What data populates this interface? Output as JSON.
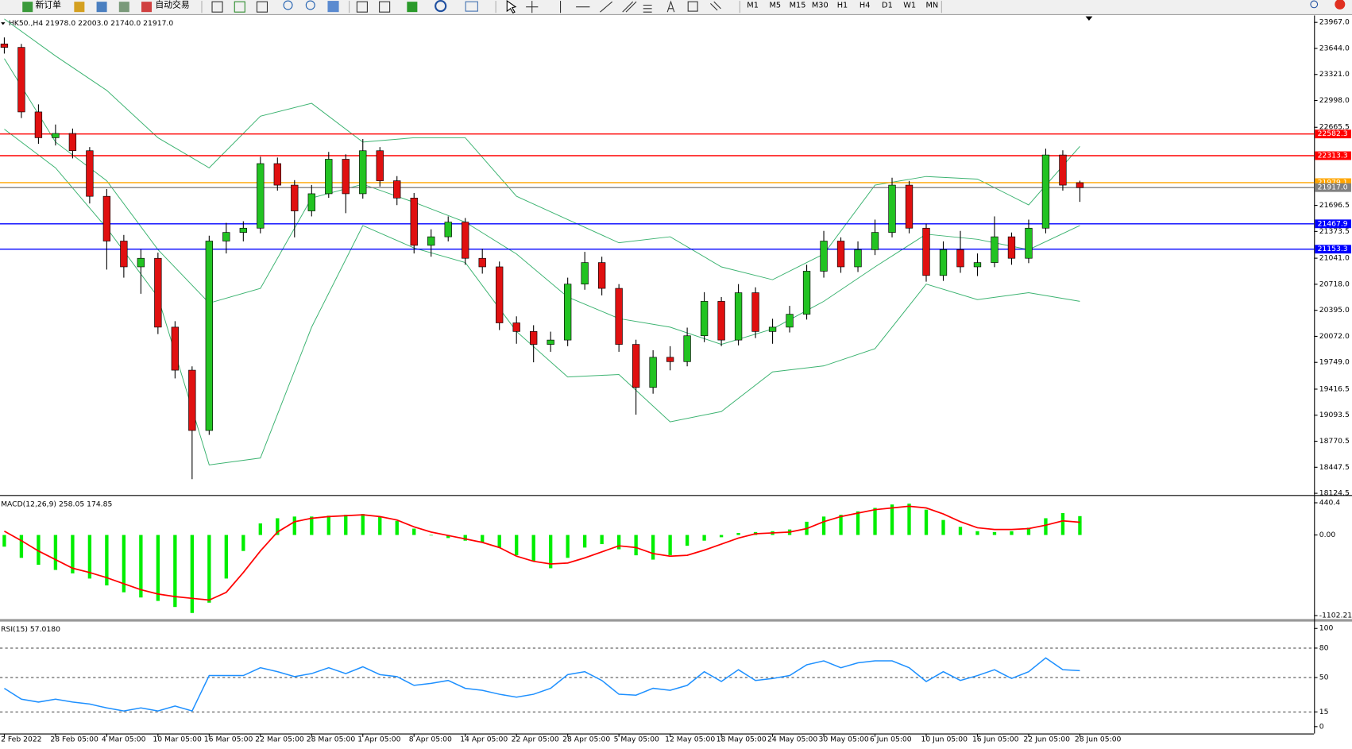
{
  "toolbar": {
    "new_order": "新订单",
    "auto_trading": "自动交易",
    "timeframes": [
      "M1",
      "M5",
      "M15",
      "M30",
      "H1",
      "H4",
      "D1",
      "W1",
      "MN"
    ]
  },
  "chart_data": [
    {
      "type": "candlestick",
      "title": "HK50.,H4  21978.0 22003.0 21740.0 21917.0",
      "bull_color": "#22c322",
      "bear_color": "#e01010",
      "categories": [
        "2 Feb 2022",
        null,
        null,
        "28 Feb 05:00",
        null,
        null,
        "4 Mar 05:00",
        null,
        null,
        "10 Mar 05:00",
        null,
        null,
        "16 Mar 05:00",
        null,
        null,
        "22 Mar 05:00",
        null,
        null,
        "28 Mar 05:00",
        null,
        null,
        "1 Apr 05:00",
        null,
        null,
        "8 Apr 05:00",
        null,
        null,
        "14 Apr 05:00",
        null,
        null,
        "22 Apr 05:00",
        null,
        null,
        "28 Apr 05:00",
        null,
        null,
        "5 May 05:00",
        null,
        null,
        "12 May 05:00",
        null,
        null,
        "18 May 05:00",
        null,
        null,
        "24 May 05:00",
        null,
        null,
        "30 May 05:00",
        null,
        null,
        "6 Jun 05:00",
        null,
        null,
        "10 Jun 05:00",
        null,
        null,
        "16 Jun 05:00",
        null,
        null,
        "22 Jun 05:00",
        null,
        null,
        "28 Jun 05:00"
      ],
      "open": [
        23700,
        23657,
        22856,
        22536,
        22589,
        22375,
        21809,
        21254,
        20934,
        21040,
        20186,
        19652,
        18904,
        21254,
        21361,
        21414,
        22215,
        21948,
        21628,
        21841,
        22269,
        21841,
        22375,
        22002,
        21788,
        21201,
        21307,
        21489,
        21040,
        20934,
        20239,
        20132,
        19972,
        20026,
        20720,
        20987,
        20667,
        19972,
        19438,
        19812,
        19758,
        20079,
        20506,
        20026,
        20613,
        20132,
        20186,
        20346,
        20880,
        21254,
        20934,
        21147,
        21361,
        21948,
        21414,
        20827,
        21147,
        20934,
        20987,
        21307,
        21040,
        21414,
        22322,
        21978
      ],
      "high": [
        23780,
        23700,
        22950,
        22700,
        22650,
        22420,
        21900,
        21330,
        21150,
        21110,
        20260,
        19700,
        21320,
        21480,
        21500,
        22300,
        22290,
        22010,
        21950,
        22360,
        22330,
        22520,
        22420,
        22060,
        21850,
        21400,
        21560,
        21540,
        21160,
        21000,
        20320,
        20210,
        20130,
        20800,
        21120,
        21060,
        20720,
        20030,
        19900,
        19950,
        20180,
        20620,
        20560,
        20720,
        20680,
        20290,
        20450,
        20960,
        21380,
        21300,
        21250,
        21520,
        22040,
        22000,
        21470,
        21250,
        21380,
        21100,
        21560,
        21360,
        21520,
        22400,
        22380,
        22003
      ],
      "low": [
        23580,
        22780,
        22460,
        22440,
        22280,
        21720,
        20900,
        20800,
        20600,
        20100,
        19550,
        18300,
        18850,
        21100,
        21250,
        21350,
        21880,
        21300,
        21560,
        21790,
        21600,
        21780,
        21930,
        21700,
        21100,
        21060,
        21250,
        20960,
        20850,
        20150,
        19980,
        19750,
        19880,
        19950,
        20650,
        20580,
        19880,
        19100,
        19360,
        19650,
        19700,
        20000,
        19950,
        19960,
        20050,
        19980,
        20120,
        20280,
        20800,
        20860,
        20870,
        21080,
        21300,
        21350,
        20750,
        20760,
        20860,
        20820,
        20930,
        20960,
        20980,
        21350,
        21880,
        21740
      ],
      "close": [
        23657,
        22856,
        22536,
        22589,
        22375,
        21809,
        21254,
        20934,
        21040,
        20186,
        19652,
        18904,
        21254,
        21361,
        21414,
        22215,
        21948,
        21628,
        21841,
        22269,
        21841,
        22375,
        22002,
        21788,
        21201,
        21307,
        21489,
        21040,
        20934,
        20239,
        20132,
        19972,
        20026,
        20720,
        20987,
        20667,
        19972,
        19438,
        19812,
        19758,
        20079,
        20506,
        20026,
        20613,
        20132,
        20186,
        20346,
        20880,
        21254,
        20934,
        21147,
        21361,
        21948,
        21414,
        20827,
        21147,
        20934,
        20987,
        21307,
        21040,
        21414,
        22322,
        21948,
        21917
      ],
      "bands": {
        "color": "#3cb371",
        "x": [
          0,
          3,
          6,
          9,
          12,
          15,
          18,
          21,
          24,
          27,
          30,
          33,
          36,
          39,
          42,
          45,
          48,
          51,
          54,
          57,
          60,
          63
        ],
        "upper": [
          24010,
          23550,
          23123,
          22536,
          22162,
          22803,
          22963,
          22482,
          22536,
          22536,
          21809,
          21521,
          21233,
          21307,
          20934,
          20774,
          21094,
          21948,
          22055,
          22023,
          21703,
          22429
        ],
        "middle": [
          23518,
          22482,
          22002,
          21147,
          20485,
          20667,
          21788,
          21959,
          21735,
          21489,
          21094,
          20560,
          20293,
          20186,
          19972,
          20164,
          20506,
          20934,
          21340,
          21275,
          21147,
          21446
        ],
        "lower": [
          22643,
          22162,
          21414,
          20560,
          18477,
          18562,
          20186,
          21446,
          21169,
          20987,
          20132,
          19567,
          19598,
          19011,
          19139,
          19630,
          19705,
          19919,
          20720,
          20528,
          20613,
          20506
        ]
      },
      "levels": [
        {
          "value": 22582.3,
          "color": "#ff0000"
        },
        {
          "value": 22313.3,
          "color": "#ff0000"
        },
        {
          "value": 21979.1,
          "color": "#ffa500"
        },
        {
          "value": 21917,
          "label": "21917.0",
          "color": "#808080"
        },
        {
          "value": 21467.9,
          "color": "#0000ff"
        },
        {
          "value": 21153.3,
          "color": "#0000ff"
        }
      ],
      "ylim": [
        18124.5,
        23967
      ],
      "yticks": [
        {
          "value": 23967,
          "label": "23967.0"
        },
        {
          "value": 23644,
          "label": "23644.0"
        },
        {
          "value": 23321,
          "label": "23321.0"
        },
        {
          "value": 22998,
          "label": "22998.0"
        },
        22665.5,
        21696.5,
        21373.5,
        {
          "value": 21041,
          "label": "21041.0"
        },
        {
          "value": 20718,
          "label": "20718.0"
        },
        {
          "value": 20395,
          "label": "20395.0"
        },
        {
          "value": 20072,
          "label": "20072.0"
        },
        {
          "value": 19749,
          "label": "19749.0"
        },
        19416.5,
        19093.5,
        18770.5,
        18447.5,
        18124.5
      ]
    },
    {
      "type": "macd",
      "title": "MACD(12,26,9) 258.05 174.85",
      "series": [
        {
          "style": "histogram",
          "color": "#00ee00",
          "values": [
            -160,
            -313,
            -408,
            -478,
            -525,
            -596,
            -690,
            -784,
            -855,
            -902,
            -985,
            -1067,
            -926,
            -596,
            -219,
            158,
            229,
            252,
            252,
            264,
            276,
            287,
            252,
            193,
            87,
            -7,
            -42,
            -78,
            -101,
            -172,
            -278,
            -360,
            -455,
            -313,
            -172,
            -125,
            -196,
            -278,
            -337,
            -278,
            -148,
            -78,
            -31,
            28,
            40,
            52,
            75,
            181,
            252,
            276,
            323,
            370,
            417,
            429,
            346,
            205,
            111,
            52,
            40,
            52,
            99,
            229,
            299,
            258.05
          ]
        },
        {
          "style": "line",
          "color": "#ff0000",
          "values": [
            52,
            -78,
            -219,
            -337,
            -455,
            -514,
            -584,
            -667,
            -749,
            -808,
            -843,
            -867,
            -890,
            -784,
            -514,
            -219,
            40,
            181,
            229,
            252,
            264,
            276,
            252,
            205,
            111,
            40,
            -7,
            -54,
            -101,
            -172,
            -290,
            -360,
            -396,
            -384,
            -313,
            -231,
            -148,
            -172,
            -254,
            -290,
            -278,
            -207,
            -125,
            -42,
            16,
            28,
            40,
            87,
            181,
            252,
            299,
            346,
            370,
            393,
            370,
            287,
            181,
            99,
            75,
            75,
            87,
            134,
            193,
            174.85
          ]
        }
      ],
      "ylim": [
        -1102.21,
        440.4
      ],
      "yticks": [
        440.4,
        {
          "value": 0,
          "label": "0.00"
        },
        -1102.21
      ]
    },
    {
      "type": "line",
      "title": "RSI(15) 57.0180",
      "color": "#1e90ff",
      "values": [
        39,
        28,
        25,
        28,
        25,
        23,
        19,
        16,
        19,
        16,
        21,
        16,
        52,
        52,
        52,
        60,
        56,
        51,
        54,
        60,
        54,
        61,
        53,
        51,
        42,
        44,
        47,
        39,
        37,
        33,
        30,
        33,
        39,
        53,
        56,
        47,
        33,
        32,
        39,
        37,
        42,
        56,
        46,
        58,
        47,
        49,
        52,
        63,
        67,
        60,
        65,
        67,
        67,
        60,
        46,
        56,
        47,
        52,
        58,
        49,
        56,
        70,
        58,
        57.018
      ],
      "levels": [
        80,
        50,
        15
      ],
      "ylim": [
        0,
        100
      ],
      "yticks": [
        100,
        80,
        50,
        15,
        0
      ]
    }
  ]
}
